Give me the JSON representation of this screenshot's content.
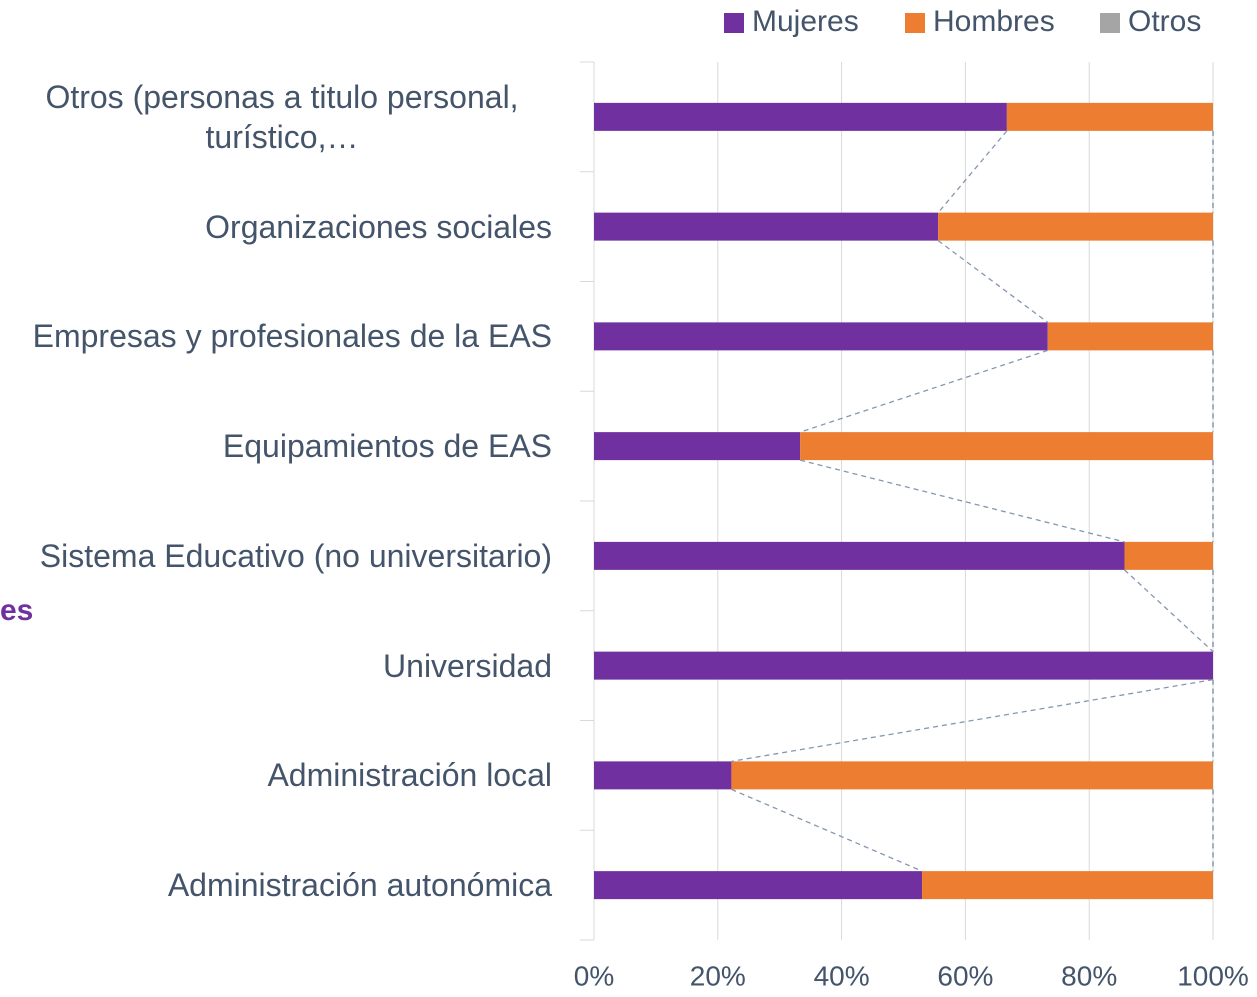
{
  "side_title_fragment": "es",
  "chart_data": {
    "type": "stacked_bar_horizontal",
    "categories": [
      "Otros (personas a titulo personal, turístico,…",
      "Organizaciones sociales",
      "Empresas y profesionales de la EAS",
      "Equipamientos de EAS",
      "Sistema Educativo (no universitario)",
      "Universidad",
      "Administración local",
      "Administración autonómica"
    ],
    "series": [
      {
        "name": "Mujeres",
        "color": "#7030a0",
        "values": [
          66.7,
          55.6,
          73.3,
          33.3,
          85.7,
          100,
          22.2,
          53
        ]
      },
      {
        "name": "Hombres",
        "color": "#ed7d31",
        "values": [
          33.3,
          44.4,
          26.7,
          66.7,
          14.3,
          0,
          77.8,
          47
        ]
      },
      {
        "name": "Otros",
        "color": "#a5a5a5",
        "values": [
          0,
          0,
          0,
          0,
          0,
          0,
          0,
          0
        ]
      }
    ],
    "xlim": [
      0,
      100
    ],
    "xticks": [
      {
        "value": 0,
        "label": "0%"
      },
      {
        "value": 20,
        "label": "20%"
      },
      {
        "value": 40,
        "label": "40%"
      },
      {
        "value": 60,
        "label": "60%"
      },
      {
        "value": 80,
        "label": "80%"
      },
      {
        "value": 100,
        "label": "100%"
      }
    ],
    "grid": true,
    "legend": "top-right",
    "series_lines": true
  }
}
